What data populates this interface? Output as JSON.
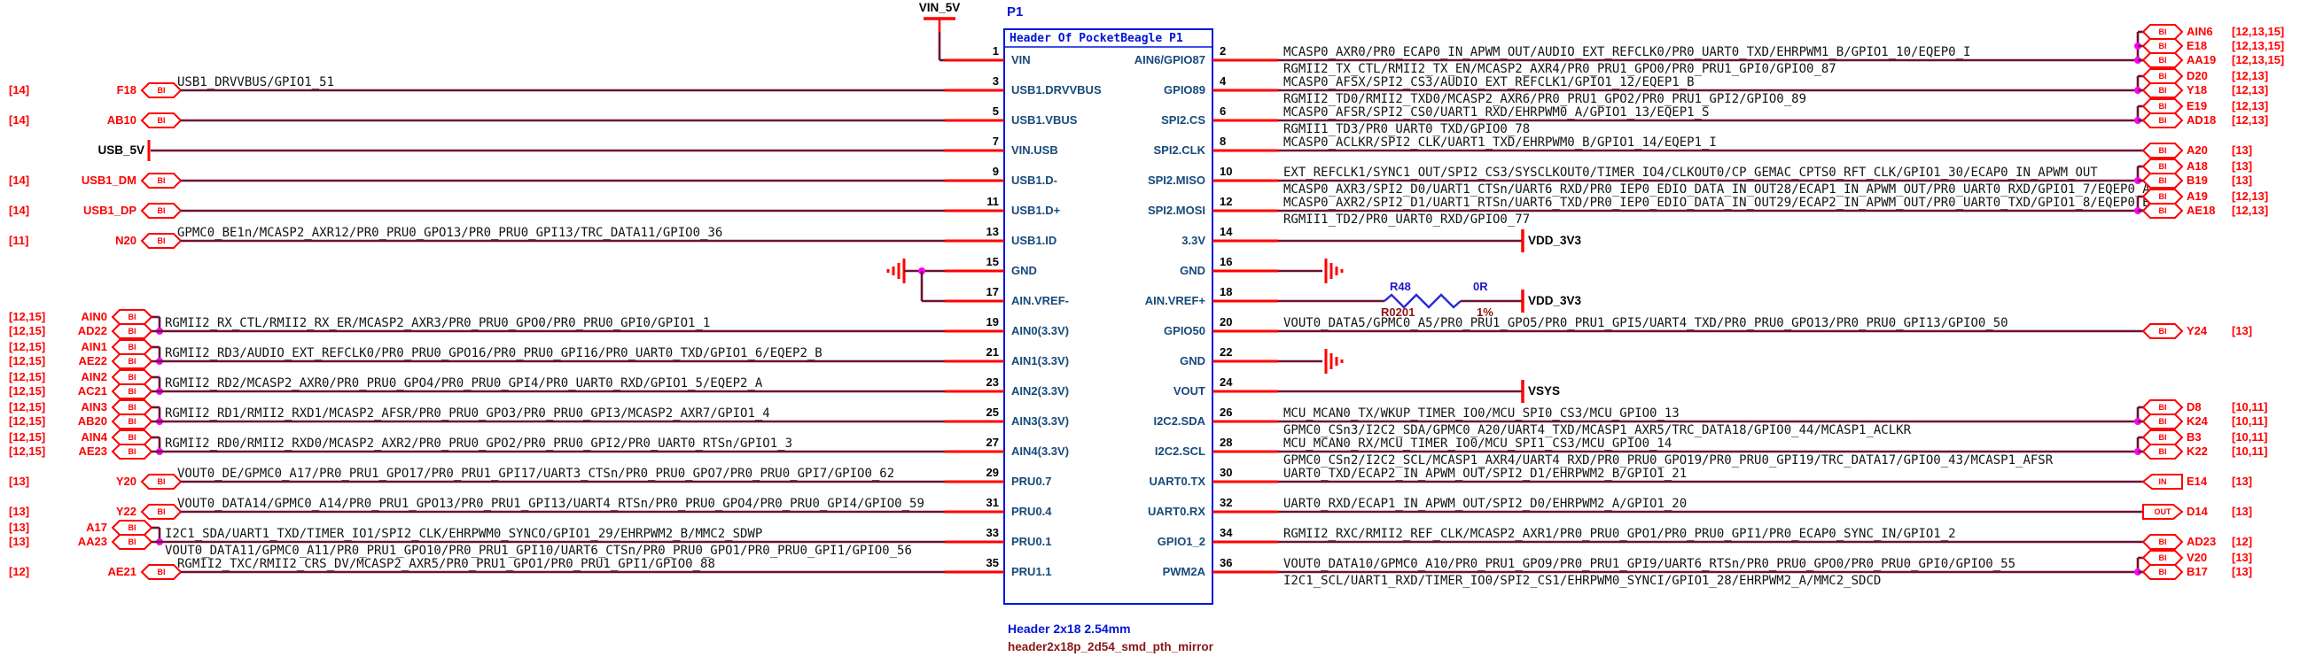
{
  "sheet": {
    "reference": "P1",
    "footer_line1": "Header 2x18 2.54mm",
    "footer_line2": "header2x18p_2d54_smd_pth_mirror"
  },
  "connector": {
    "title": "Header Of PocketBeagle P1",
    "rows": [
      {
        "left_pin": "1",
        "left_name": "VIN",
        "right_pin": "2",
        "right_name": "AIN6/GPIO87"
      },
      {
        "left_pin": "3",
        "left_name": "USB1.DRVVBUS",
        "right_pin": "4",
        "right_name": "GPIO89"
      },
      {
        "left_pin": "5",
        "left_name": "USB1.VBUS",
        "right_pin": "6",
        "right_name": "SPI2.CS"
      },
      {
        "left_pin": "7",
        "left_name": "VIN.USB",
        "right_pin": "8",
        "right_name": "SPI2.CLK"
      },
      {
        "left_pin": "9",
        "left_name": "USB1.D-",
        "right_pin": "10",
        "right_name": "SPI2.MISO"
      },
      {
        "left_pin": "11",
        "left_name": "USB1.D+",
        "right_pin": "12",
        "right_name": "SPI2.MOSI"
      },
      {
        "left_pin": "13",
        "left_name": "USB1.ID",
        "right_pin": "14",
        "right_name": "3.3V"
      },
      {
        "left_pin": "15",
        "left_name": "GND",
        "right_pin": "16",
        "right_name": "GND"
      },
      {
        "left_pin": "17",
        "left_name": "AIN.VREF-",
        "right_pin": "18",
        "right_name": "AIN.VREF+"
      },
      {
        "left_pin": "19",
        "left_name": "AIN0(3.3V)",
        "right_pin": "20",
        "right_name": "GPIO50"
      },
      {
        "left_pin": "21",
        "left_name": "AIN1(3.3V)",
        "right_pin": "22",
        "right_name": "GND"
      },
      {
        "left_pin": "23",
        "left_name": "AIN2(3.3V)",
        "right_pin": "24",
        "right_name": "VOUT"
      },
      {
        "left_pin": "25",
        "left_name": "AIN3(3.3V)",
        "right_pin": "26",
        "right_name": "I2C2.SDA"
      },
      {
        "left_pin": "27",
        "left_name": "AIN4(3.3V)",
        "right_pin": "28",
        "right_name": "I2C2.SCL"
      },
      {
        "left_pin": "29",
        "left_name": "PRU0.7",
        "right_pin": "30",
        "right_name": "UART0.TX"
      },
      {
        "left_pin": "31",
        "left_name": "PRU0.4",
        "right_pin": "32",
        "right_name": "UART0.RX"
      },
      {
        "left_pin": "33",
        "left_name": "PRU0.1",
        "right_pin": "34",
        "right_name": "GPIO1_2"
      },
      {
        "left_pin": "35",
        "left_name": "PRU1.1",
        "right_pin": "36",
        "right_name": "PWM2A"
      }
    ]
  },
  "power_nets": {
    "vin": "VIN_5V",
    "usb": "USB_5V",
    "vdd": "VDD_3V3",
    "vsys": "VSYS"
  },
  "resistor": {
    "ref": "R48",
    "footprint": "R0201",
    "value": "0R",
    "tolerance": "1%"
  },
  "left_connections": [
    {
      "row": 0,
      "type": "power_top",
      "net": "VIN_5V"
    },
    {
      "row": 1,
      "type": "port",
      "ports": [
        {
          "name": "F18",
          "refs": "[14]",
          "dir": "BI"
        }
      ],
      "label_above": "USB1_DRVVBUS/GPIO1_51"
    },
    {
      "row": 2,
      "type": "port",
      "ports": [
        {
          "name": "AB10",
          "refs": "[14]",
          "dir": "BI"
        }
      ]
    },
    {
      "row": 3,
      "type": "flag",
      "net": "USB_5V"
    },
    {
      "row": 4,
      "type": "port",
      "ports": [
        {
          "name": "USB1_DM",
          "refs": "[14]",
          "dir": "BI"
        }
      ]
    },
    {
      "row": 5,
      "type": "port",
      "ports": [
        {
          "name": "USB1_DP",
          "refs": "[14]",
          "dir": "BI"
        }
      ]
    },
    {
      "row": 6,
      "type": "port",
      "ports": [
        {
          "name": "N20",
          "refs": "[11]",
          "dir": "BI"
        }
      ],
      "label_above": "GPMC0_BE1n/MCASP2_AXR12/PR0_PRU0_GPO13/PR0_PRU0_GPI13/TRC_DATA11/GPIO0_36"
    },
    {
      "row": 7,
      "type": "gnd_pair"
    },
    {
      "row": 9,
      "type": "pair",
      "ports": [
        {
          "name": "AIN0",
          "refs": "[12,15]",
          "dir": "BI"
        },
        {
          "name": "AD22",
          "refs": "[12,15]",
          "dir": "BI"
        }
      ],
      "label_above": "RGMII2_RX_CTL/RMII2_RX_ER/MCASP2_AXR3/PR0_PRU0_GPO0/PR0_PRU0_GPI0/GPIO1_1"
    },
    {
      "row": 10,
      "type": "pair",
      "ports": [
        {
          "name": "AIN1",
          "refs": "[12,15]",
          "dir": "BI"
        },
        {
          "name": "AE22",
          "refs": "[12,15]",
          "dir": "BI"
        }
      ],
      "label_above": "RGMII2_RD3/AUDIO_EXT_REFCLK0/PR0_PRU0_GPO16/PR0_PRU0_GPI16/PR0_UART0_TXD/GPIO1_6/EQEP2_B"
    },
    {
      "row": 11,
      "type": "pair",
      "ports": [
        {
          "name": "AIN2",
          "refs": "[12,15]",
          "dir": "BI"
        },
        {
          "name": "AC21",
          "refs": "[12,15]",
          "dir": "BI"
        }
      ],
      "label_above": "RGMII2_RD2/MCASP2_AXR0/PR0_PRU0_GPO4/PR0_PRU0_GPI4/PR0_UART0_RXD/GPIO1_5/EQEP2_A"
    },
    {
      "row": 12,
      "type": "pair",
      "ports": [
        {
          "name": "AIN3",
          "refs": "[12,15]",
          "dir": "BI"
        },
        {
          "name": "AB20",
          "refs": "[12,15]",
          "dir": "BI"
        }
      ],
      "label_above": "RGMII2_RD1/RMII2_RXD1/MCASP2_AFSR/PR0_PRU0_GPO3/PR0_PRU0_GPI3/MCASP2_AXR7/GPIO1_4"
    },
    {
      "row": 13,
      "type": "pair",
      "ports": [
        {
          "name": "AIN4",
          "refs": "[12,15]",
          "dir": "BI"
        },
        {
          "name": "AE23",
          "refs": "[12,15]",
          "dir": "BI"
        }
      ],
      "label_above": "RGMII2_RD0/RMII2_RXD0/MCASP2_AXR2/PR0_PRU0_GPO2/PR0_PRU0_GPI2/PR0_UART0_RTSn/GPIO1_3"
    },
    {
      "row": 14,
      "type": "port",
      "ports": [
        {
          "name": "Y20",
          "refs": "[13]",
          "dir": "BI"
        }
      ],
      "label_above": "VOUT0_DE/GPMC0_A17/PR0_PRU1_GPO17/PR0_PRU1_GPI17/UART3_CTSn/PR0_PRU0_GPO7/PR0_PRU0_GPI7/GPIO0_62"
    },
    {
      "row": 15,
      "type": "port",
      "ports": [
        {
          "name": "Y22",
          "refs": "[13]",
          "dir": "BI"
        }
      ],
      "label_above": "VOUT0_DATA14/GPMC0_A14/PR0_PRU1_GPO13/PR0_PRU1_GPI13/UART4_RTSn/PR0_PRU0_GPO4/PR0_PRU0_GPI4/GPIO0_59"
    },
    {
      "row": 16,
      "type": "pair",
      "ports": [
        {
          "name": "A17",
          "refs": "[13]",
          "dir": "BI"
        },
        {
          "name": "AA23",
          "refs": "[13]",
          "dir": "BI"
        }
      ],
      "label_above": "I2C1_SDA/UART1_TXD/TIMER_IO1/SPI2_CLK/EHRPWM0_SYNCO/GPIO1_29/EHRPWM2_B/MMC2_SDWP",
      "label_below": "VOUT0_DATA11/GPMC0_A11/PR0_PRU1_GPO10/PR0_PRU1_GPI10/UART6_CTSn/PR0_PRU0_GPO1/PR0_PRU0_GPI1/GPIO0_56"
    },
    {
      "row": 17,
      "type": "port",
      "ports": [
        {
          "name": "AE21",
          "refs": "[12]",
          "dir": "BI"
        }
      ],
      "label_above": "RGMII2_TXC/RMII2_CRS_DV/MCASP2_AXR5/PR0_PRU1_GPO1/PR0_PRU1_GPI1/GPIO0_88"
    }
  ],
  "right_connections": [
    {
      "row": 0,
      "type": "ports",
      "ports": [
        {
          "name": "AIN6",
          "refs": "[12,13,15]",
          "dir": "BI"
        },
        {
          "name": "E18",
          "refs": "[12,13,15]",
          "dir": "BI"
        },
        {
          "name": "AA19",
          "refs": "[12,13,15]",
          "dir": "BI"
        }
      ],
      "label_above": "MCASP0_AXR0/PR0_ECAP0_IN_APWM_OUT/AUDIO_EXT_REFCLK0/PR0_UART0_TXD/EHRPWM1_B/GPIO1_10/EQEP0_I",
      "label_below": "RGMII2_TX_CTL/RMII2_TX_EN/MCASP2_AXR4/PR0_PRU1_GPO0/PR0_PRU1_GPI0/GPIO0_87"
    },
    {
      "row": 1,
      "type": "ports",
      "ports": [
        {
          "name": "D20",
          "refs": "[12,13]",
          "dir": "BI"
        },
        {
          "name": "Y18",
          "refs": "[12,13]",
          "dir": "BI"
        }
      ],
      "label_above": "MCASP0_AFSX/SPI2_CS3/AUDIO_EXT_REFCLK1/GPIO1_12/EQEP1_B",
      "label_below": "RGMII2_TD0/RMII2_TXD0/MCASP2_AXR6/PR0_PRU1_GPO2/PR0_PRU1_GPI2/GPIO0_89"
    },
    {
      "row": 2,
      "type": "ports",
      "ports": [
        {
          "name": "E19",
          "refs": "[12,13]",
          "dir": "BI"
        },
        {
          "name": "AD18",
          "refs": "[12,13]",
          "dir": "BI"
        }
      ],
      "label_above": "MCASP0_AFSR/SPI2_CS0/UART1_RXD/EHRPWM0_A/GPIO1_13/EQEP1_S",
      "label_below": "RGMII1_TD3/PR0_UART0_TXD/GPIO0_78"
    },
    {
      "row": 3,
      "type": "ports",
      "ports": [
        {
          "name": "A20",
          "refs": "[13]",
          "dir": "BI"
        }
      ],
      "label_above": "MCASP0_ACLKR/SPI2_CLK/UART1_TXD/EHRPWM0_B/GPIO1_14/EQEP1_I"
    },
    {
      "row": 4,
      "type": "ports",
      "ports": [
        {
          "name": "A18",
          "refs": "[13]",
          "dir": "BI"
        },
        {
          "name": "B19",
          "refs": "[13]",
          "dir": "BI"
        }
      ],
      "label_above": "EXT_REFCLK1/SYNC1_OUT/SPI2_CS3/SYSCLKOUT0/TIMER_IO4/CLKOUT0/CP_GEMAC_CPTS0_RFT_CLK/GPIO1_30/ECAP0_IN_APWM_OUT",
      "label_below": "MCASP0_AXR3/SPI2_D0/UART1_CTSn/UART6_RXD/PR0_IEP0_EDIO_DATA_IN_OUT28/ECAP1_IN_APWM_OUT/PR0_UART0_RXD/GPIO1_7/EQEP0_A"
    },
    {
      "row": 5,
      "type": "ports",
      "ports": [
        {
          "name": "A19",
          "refs": "[12,13]",
          "dir": "BI"
        },
        {
          "name": "AE18",
          "refs": "[12,13]",
          "dir": "BI"
        }
      ],
      "label_above": "MCASP0_AXR2/SPI2_D1/UART1_RTSn/UART6_TXD/PR0_IEP0_EDIO_DATA_IN_OUT29/ECAP2_IN_APWM_OUT/PR0_UART0_TXD/GPIO1_8/EQEP0_B",
      "label_below": "RGMII1_TD2/PR0_UART0_RXD/GPIO0_77"
    },
    {
      "row": 6,
      "type": "power",
      "net": "VDD_3V3"
    },
    {
      "row": 7,
      "type": "gnd"
    },
    {
      "row": 8,
      "type": "res_power",
      "net": "VDD_3V3"
    },
    {
      "row": 9,
      "type": "ports",
      "ports": [
        {
          "name": "Y24",
          "refs": "[13]",
          "dir": "BI"
        }
      ],
      "label_above": "VOUT0_DATA5/GPMC0_A5/PR0_PRU1_GPO5/PR0_PRU1_GPI5/UART4_TXD/PR0_PRU0_GPO13/PR0_PRU0_GPI13/GPIO0_50"
    },
    {
      "row": 10,
      "type": "gnd"
    },
    {
      "row": 11,
      "type": "power",
      "net": "VSYS"
    },
    {
      "row": 12,
      "type": "ports",
      "ports": [
        {
          "name": "D8",
          "refs": "[10,11]",
          "dir": "BI"
        },
        {
          "name": "K24",
          "refs": "[10,11]",
          "dir": "BI"
        }
      ],
      "label_above": "MCU_MCAN0_TX/WKUP_TIMER_IO0/MCU_SPI0_CS3/MCU_GPIO0_13",
      "label_below": "GPMC0_CSn3/I2C2_SDA/GPMC0_A20/UART4_TXD/MCASP1_AXR5/TRC_DATA18/GPIO0_44/MCASP1_ACLKR"
    },
    {
      "row": 13,
      "type": "ports",
      "ports": [
        {
          "name": "B3",
          "refs": "[10,11]",
          "dir": "BI"
        },
        {
          "name": "K22",
          "refs": "[10,11]",
          "dir": "BI"
        }
      ],
      "label_above": "MCU_MCAN0_RX/MCU_TIMER_IO0/MCU_SPI1_CS3/MCU_GPIO0_14",
      "label_below": "GPMC0_CSn2/I2C2_SCL/MCASP1_AXR4/UART4_RXD/PR0_PRU0_GPO19/PR0_PRU0_GPI19/TRC_DATA17/GPIO0_43/MCASP1_AFSR"
    },
    {
      "row": 14,
      "type": "ports",
      "ports": [
        {
          "name": "E14",
          "refs": "[13]",
          "dir": "IN"
        }
      ],
      "label_above": "UART0_TXD/ECAP2_IN_APWM_OUT/SPI2_D1/EHRPWM2_B/GPIO1_21"
    },
    {
      "row": 15,
      "type": "ports",
      "ports": [
        {
          "name": "D14",
          "refs": "[13]",
          "dir": "OUT"
        }
      ],
      "label_above": "UART0_RXD/ECAP1_IN_APWM_OUT/SPI2_D0/EHRPWM2_A/GPIO1_20"
    },
    {
      "row": 16,
      "type": "ports",
      "ports": [
        {
          "name": "AD23",
          "refs": "[12]",
          "dir": "BI"
        }
      ],
      "label_above": "RGMII2_RXC/RMII2_REF_CLK/MCASP2_AXR1/PR0_PRU0_GPO1/PR0_PRU0_GPI1/PR0_ECAP0_SYNC_IN/GPIO1_2"
    },
    {
      "row": 17,
      "type": "ports",
      "ports": [
        {
          "name": "V20",
          "refs": "[13]",
          "dir": "BI"
        },
        {
          "name": "B17",
          "refs": "[13]",
          "dir": "BI"
        }
      ],
      "label_above": "VOUT0_DATA10/GPMC0_A10/PR0_PRU1_GPO9/PR0_PRU1_GPI9/UART6_RTSn/PR0_PRU0_GPO0/PR0_PRU0_GPI0/GPIO0_55",
      "label_below": "I2C1_SCL/UART1_RXD/TIMER_IO0/SPI2_CS1/EHRPWM0_SYNCI/GPIO1_28/EHRPWM2_A/MMC2_SDCD"
    }
  ],
  "colors": {
    "wire": "#6e1232",
    "stub": "#ff0000",
    "outline": "#0016e0",
    "junction": "#ff00ff",
    "resistor_body": "#2a2ad4"
  }
}
